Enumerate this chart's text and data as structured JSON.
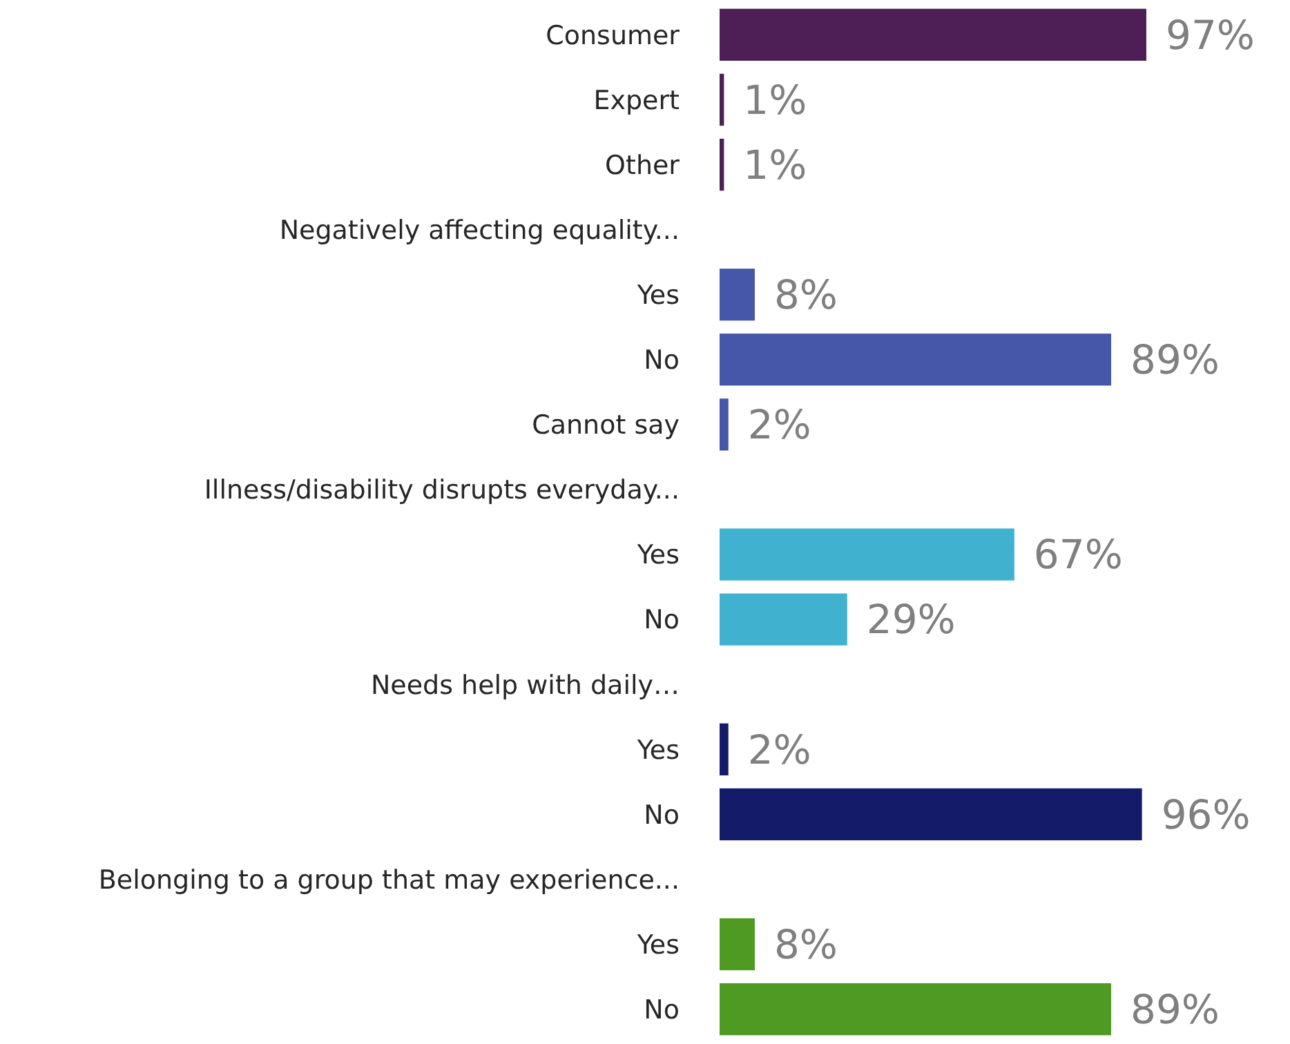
{
  "chart_data": {
    "type": "bar",
    "orientation": "horizontal",
    "categories": [
      "Consumer",
      "Expert",
      "Other",
      "Negatively affecting equality...",
      "Yes",
      "No",
      "Cannot say",
      "Illness/disability disrupts everyday...",
      "Yes",
      "No",
      "Needs help with daily…",
      "Yes",
      "No",
      "Belonging to a group that may experience...",
      "Yes",
      "No"
    ],
    "values": [
      97,
      1,
      1,
      null,
      8,
      89,
      2,
      null,
      67,
      29,
      null,
      2,
      96,
      null,
      8,
      89
    ],
    "value_labels": [
      "97%",
      "1%",
      "1%",
      null,
      "8%",
      "89%",
      "2%",
      null,
      "67%",
      "29%",
      null,
      "2%",
      "96%",
      null,
      "8%",
      "89%"
    ],
    "colors": [
      "#4e1f56",
      "#4e1f56",
      "#4e1f56",
      null,
      "#4656a8",
      "#4656a8",
      "#4656a8",
      null,
      "#40b2d0",
      "#40b2d0",
      null,
      "#141c6a",
      "#141c6a",
      null,
      "#4e9a23",
      "#4e9a23"
    ],
    "data_labels": false
  }
}
